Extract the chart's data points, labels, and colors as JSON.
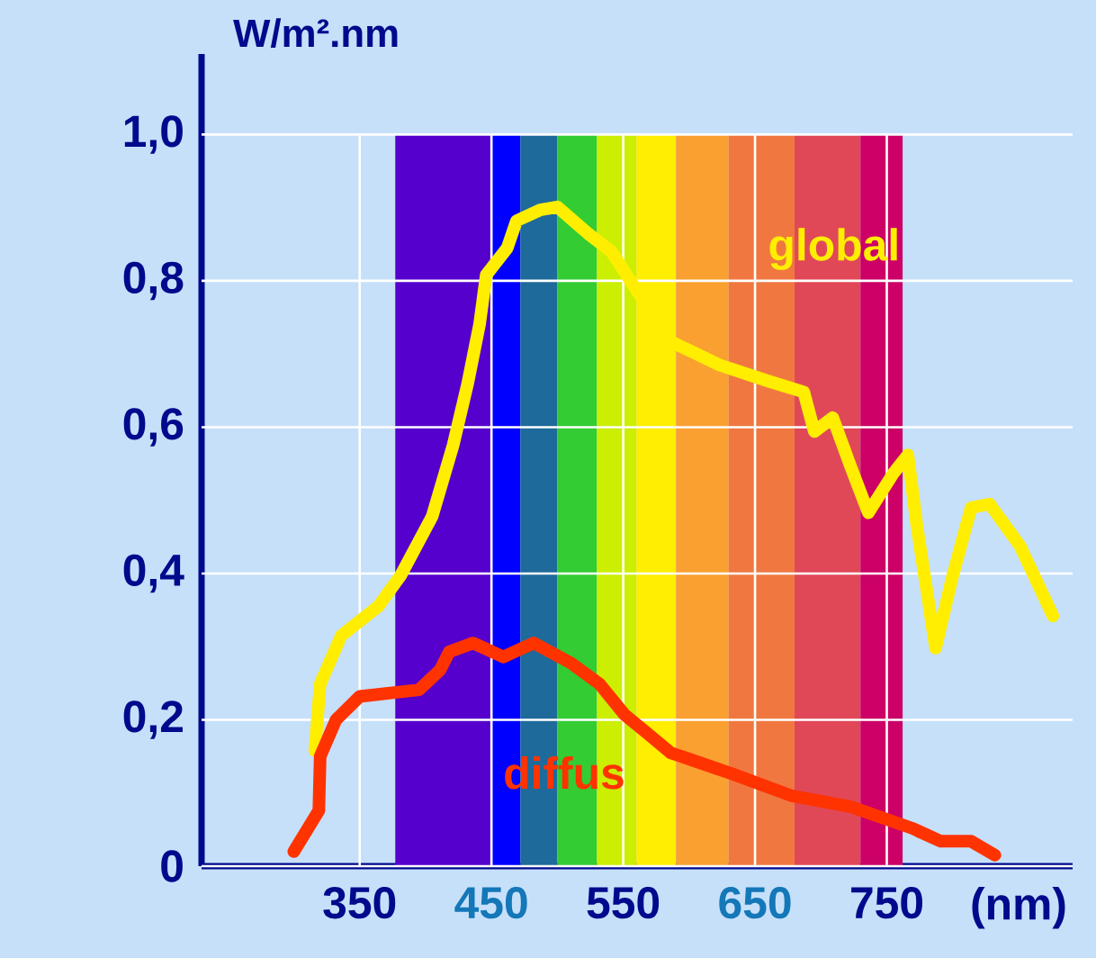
{
  "chart_data": {
    "type": "line",
    "xlabel": "(nm)",
    "ylabel": "W/m².nm",
    "xlim": [
      230,
      891
    ],
    "ylim": [
      0,
      1.11
    ],
    "xticks": [
      350,
      450,
      550,
      650,
      750
    ],
    "yticks": [
      0,
      {
        "value": 0.2,
        "label": "0,2"
      },
      {
        "value": 0.4,
        "label": "0,4"
      },
      {
        "value": 0.6,
        "label": "0,6"
      },
      {
        "value": 0.8,
        "label": "0,8"
      },
      {
        "value": 1.0,
        "label": "1,0"
      }
    ],
    "grid": true,
    "bands": [
      {
        "axis": "x",
        "from": 377,
        "to": 450,
        "color": "#5500cc"
      },
      {
        "axis": "x",
        "from": 450,
        "to": 472,
        "color": "#0000ff"
      },
      {
        "axis": "x",
        "from": 472,
        "to": 500,
        "color": "#1e6a9a"
      },
      {
        "axis": "x",
        "from": 500,
        "to": 530,
        "color": "#33cc33"
      },
      {
        "axis": "x",
        "from": 530,
        "to": 560,
        "color": "#ccee00"
      },
      {
        "axis": "x",
        "from": 560,
        "to": 590,
        "color": "#ffee00"
      },
      {
        "axis": "x",
        "from": 590,
        "to": 630,
        "color": "#f9a030"
      },
      {
        "axis": "x",
        "from": 630,
        "to": 680,
        "color": "#f07840"
      },
      {
        "axis": "x",
        "from": 680,
        "to": 730,
        "color": "#e04858"
      },
      {
        "axis": "x",
        "from": 730,
        "to": 762,
        "color": "#cc0066"
      }
    ],
    "series": [
      {
        "name": "global",
        "color": "#ffee00",
        "x": [
          316,
          320,
          336,
          364,
          381,
          405,
          421,
          432,
          441,
          446,
          462,
          469,
          487,
          500,
          523,
          541,
          559,
          586,
          623,
          660,
          687,
          695,
          709,
          723,
          736,
          755,
          766,
          773,
          787,
          800,
          814,
          828,
          851,
          876
        ],
        "values": [
          0.158,
          0.249,
          0.315,
          0.355,
          0.397,
          0.478,
          0.576,
          0.66,
          0.741,
          0.808,
          0.845,
          0.882,
          0.897,
          0.901,
          0.865,
          0.84,
          0.79,
          0.717,
          0.685,
          0.663,
          0.648,
          0.594,
          0.613,
          0.544,
          0.483,
          0.537,
          0.562,
          0.463,
          0.298,
          0.397,
          0.49,
          0.495,
          0.438,
          0.342
        ]
      },
      {
        "name": "diffus",
        "color": "#ff3300",
        "x": [
          300,
          319,
          320,
          332,
          350,
          395,
          411,
          418,
          436,
          459,
          482,
          510,
          532,
          551,
          568,
          586,
          633,
          678,
          723,
          769,
          791,
          814,
          832
        ],
        "values": [
          0.02,
          0.076,
          0.15,
          0.2,
          0.232,
          0.241,
          0.268,
          0.293,
          0.305,
          0.286,
          0.305,
          0.278,
          0.249,
          0.207,
          0.182,
          0.155,
          0.126,
          0.096,
          0.081,
          0.052,
          0.034,
          0.034,
          0.015
        ]
      }
    ]
  }
}
